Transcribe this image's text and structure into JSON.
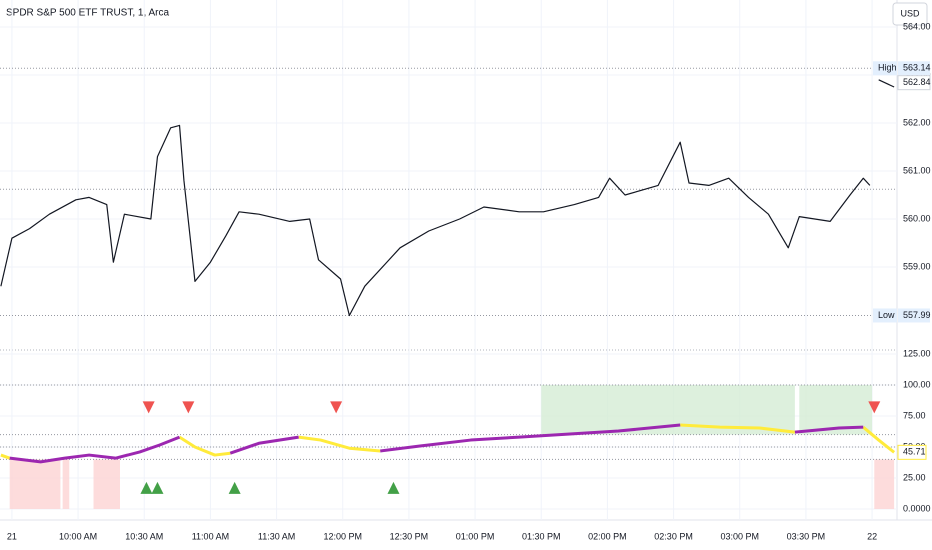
{
  "chart_data": [
    {
      "type": "line",
      "title": "SPDR S&P 500 ETF TRUST, 1, Arca",
      "currency": "USD",
      "x": [
        -5,
        0,
        8,
        17,
        29,
        35,
        43,
        46,
        51,
        63,
        66,
        72,
        76,
        78,
        83,
        90,
        97,
        103,
        112,
        126,
        135,
        139,
        149,
        153,
        160,
        169,
        176,
        189,
        203,
        214,
        230,
        241,
        255,
        266,
        271,
        278,
        293,
        303,
        307,
        316,
        325,
        334,
        343,
        352,
        357,
        371,
        380,
        386,
        389,
        391,
        393,
        400
      ],
      "series": [
        {
          "color": "#131722",
          "values": [
            558.6,
            559.6,
            559.8,
            560.1,
            560.4,
            560.45,
            560.3,
            559.1,
            560.1,
            560.0,
            561.3,
            561.9,
            561.95,
            560.8,
            558.7,
            559.1,
            559.65,
            560.15,
            560.1,
            559.95,
            560.0,
            559.15,
            558.75,
            557.99,
            558.6,
            559.05,
            559.4,
            559.75,
            560.0,
            560.25,
            560.15,
            560.15,
            560.3,
            560.45,
            560.85,
            560.5,
            560.7,
            561.6,
            560.75,
            560.7,
            560.85,
            560.45,
            560.1,
            559.4,
            560.05,
            559.95,
            560.5,
            560.85,
            560.7,
            null,
            562.9,
            562.75
          ]
        }
      ],
      "xlim": [
        -5.4,
        401.3
      ],
      "ylim": [
        557.375,
        564.5625
      ],
      "xticks": [
        {
          "value": 0,
          "label": "21"
        },
        {
          "value": 30,
          "label": "10:00 AM"
        },
        {
          "value": 60,
          "label": "10:30 AM"
        },
        {
          "value": 90,
          "label": "11:00 AM"
        },
        {
          "value": 120,
          "label": "11:30 AM"
        },
        {
          "value": 150,
          "label": "12:00 PM"
        },
        {
          "value": 180,
          "label": "12:30 PM"
        },
        {
          "value": 210,
          "label": "01:00 PM"
        },
        {
          "value": 240,
          "label": "01:30 PM"
        },
        {
          "value": 270,
          "label": "02:00 PM"
        },
        {
          "value": 300,
          "label": "02:30 PM"
        },
        {
          "value": 330,
          "label": "03:00 PM"
        },
        {
          "value": 360,
          "label": "03:30 PM"
        },
        {
          "value": 390,
          "label": "22"
        }
      ],
      "yticks": [
        {
          "value": 564,
          "label": "564.00"
        },
        {
          "value": 563,
          "label": "563.00"
        },
        {
          "value": 562,
          "label": "562.00"
        },
        {
          "value": 561,
          "label": "561.00"
        },
        {
          "value": 560,
          "label": "560.00"
        },
        {
          "value": 559,
          "label": "559.00"
        }
      ],
      "grid": true,
      "levels": [
        {
          "name": "High",
          "value": 563.14
        },
        {
          "value": 560.62
        },
        {
          "name": "Low",
          "value": 557.99
        }
      ],
      "last": 562.84
    },
    {
      "type": "line",
      "x": [
        -5,
        -1,
        13,
        24,
        35,
        47,
        58,
        67,
        76,
        83,
        92,
        99,
        112,
        130,
        140,
        153,
        167,
        185,
        208,
        230,
        253,
        275,
        303,
        321,
        339,
        355,
        375,
        386,
        393,
        400
      ],
      "series": [
        {
          "color": "#ffeb3b",
          "values": [
            43.5,
            41,
            null,
            null,
            null,
            null,
            null,
            null,
            58,
            50,
            43.5,
            45,
            null,
            58,
            55.6,
            49,
            46.8,
            null,
            null,
            null,
            null,
            null,
            67.7,
            66,
            65.3,
            62,
            null,
            66,
            55.6,
            45.71
          ]
        },
        {
          "color": "#9c27b0",
          "values": [
            null,
            41,
            38,
            41,
            43.5,
            41,
            46,
            51.6,
            58,
            null,
            null,
            45,
            53,
            58,
            null,
            null,
            46.8,
            50.8,
            55.6,
            58,
            60.5,
            62.9,
            67.7,
            null,
            null,
            62,
            65.3,
            66,
            null,
            null
          ]
        }
      ],
      "ylim": [
        -8.87,
        132.26
      ],
      "yticks": [
        {
          "value": 125,
          "label": "125.00"
        },
        {
          "value": 100,
          "label": "100.00"
        },
        {
          "value": 75,
          "label": "75.00"
        },
        {
          "value": 50,
          "label": "50.00"
        },
        {
          "value": 25,
          "label": "25.00"
        },
        {
          "value": 0,
          "label": "0.0000"
        }
      ],
      "levels": [
        100,
        60,
        50,
        40
      ],
      "zones": [
        {
          "from": 240,
          "to": 355,
          "low": 60,
          "high": 100,
          "color": "#d5ecd4"
        },
        {
          "from": 357,
          "to": 390,
          "low": 60,
          "high": 100,
          "color": "#d5ecd4"
        },
        {
          "from": -1,
          "to": 22,
          "low": 0,
          "high": 40,
          "color": "#fcd3d3"
        },
        {
          "from": 23,
          "to": 26,
          "low": 0,
          "high": 40,
          "color": "#fcd3d3"
        },
        {
          "from": 37,
          "to": 49,
          "low": 0,
          "high": 40,
          "color": "#fcd3d3"
        },
        {
          "from": 391,
          "to": 400,
          "low": 0,
          "high": 40,
          "color": "#fcd3d3"
        }
      ],
      "sell_signals": {
        "color": "#ef5350",
        "x": [
          62,
          80,
          147,
          391
        ]
      },
      "buy_signals": {
        "color": "#43a047",
        "x": [
          61,
          66,
          101,
          173
        ]
      },
      "last": 45.71
    }
  ]
}
